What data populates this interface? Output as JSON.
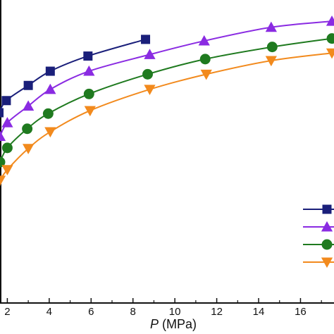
{
  "chart_data": {
    "type": "line",
    "xlabel_var": "P",
    "xlabel_unit": " (MPa)",
    "xlabel": "P (MPa)",
    "ylabel": "",
    "xlim": [
      1.65,
      17.6
    ],
    "ylim": [
      0,
      1.0
    ],
    "xticks": [
      2,
      4,
      6,
      8,
      10,
      12,
      14,
      16
    ],
    "xtick_labels": [
      "2",
      "4",
      "6",
      "8",
      "10",
      "12",
      "14",
      "16"
    ],
    "grid": false,
    "legend": {
      "placement": "bottom-right",
      "labels_visible": false
    },
    "series": [
      {
        "color": "#1a1f7a",
        "marker": "square",
        "x": [
          1.6,
          1.95,
          3.0,
          4.05,
          5.85,
          8.6
        ],
        "y": [
          0.628,
          0.668,
          0.718,
          0.765,
          0.815,
          0.87
        ]
      },
      {
        "color": "#8a2be2",
        "marker": "triangle-up",
        "x": [
          1.65,
          2.0,
          3.0,
          4.05,
          5.9,
          8.8,
          11.4,
          14.6,
          17.5
        ],
        "y": [
          0.55,
          0.595,
          0.65,
          0.705,
          0.765,
          0.82,
          0.865,
          0.91,
          0.93
        ]
      },
      {
        "color": "#1f7a1f",
        "marker": "circle",
        "x": [
          1.65,
          2.0,
          2.95,
          3.95,
          5.9,
          8.7,
          11.45,
          14.65,
          17.5
        ],
        "y": [
          0.465,
          0.512,
          0.575,
          0.625,
          0.69,
          0.755,
          0.805,
          0.845,
          0.873
        ]
      },
      {
        "color": "#f28a1d",
        "marker": "triangle-down",
        "x": [
          1.65,
          2.0,
          3.0,
          4.05,
          5.95,
          8.8,
          11.5,
          14.6,
          17.5
        ],
        "y": [
          0.405,
          0.44,
          0.51,
          0.565,
          0.635,
          0.705,
          0.755,
          0.8,
          0.825
        ]
      }
    ]
  }
}
